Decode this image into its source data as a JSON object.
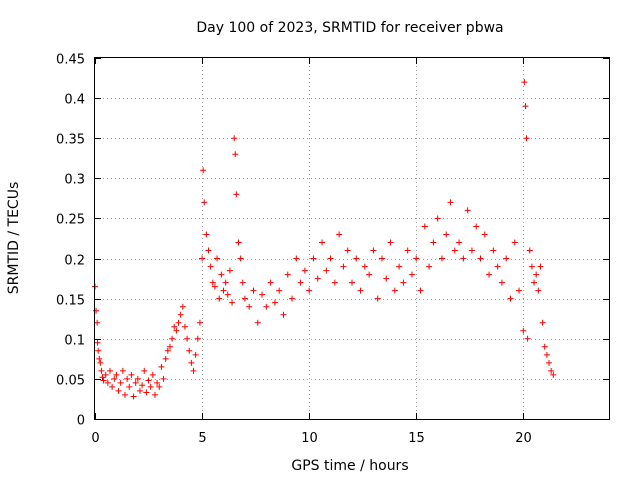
{
  "chart_data": {
    "type": "scatter",
    "title": "Day 100 of 2023, SRMTID for receiver pbwa",
    "xlabel": "GPS time / hours",
    "ylabel": "SRMTID / TECUs",
    "xlim": [
      0,
      24
    ],
    "ylim": [
      0,
      0.45
    ],
    "xticks": [
      0,
      5,
      10,
      15,
      20
    ],
    "xtick_labels": [
      "0",
      "5",
      "10",
      "15",
      "20"
    ],
    "yticks": [
      0,
      0.05,
      0.1,
      0.15,
      0.2,
      0.25,
      0.3,
      0.35,
      0.4,
      0.45
    ],
    "ytick_labels": [
      "0",
      "0.05",
      "0.1",
      "0.15",
      "0.2",
      "0.25",
      "0.3",
      "0.35",
      "0.4",
      "0.45"
    ],
    "grid": true,
    "marker": "plus",
    "series": [
      {
        "name": "SRMTID",
        "color": "#ff0000",
        "points": [
          [
            0.0,
            0.165
          ],
          [
            0.05,
            0.135
          ],
          [
            0.1,
            0.12
          ],
          [
            0.12,
            0.095
          ],
          [
            0.15,
            0.085
          ],
          [
            0.2,
            0.075
          ],
          [
            0.25,
            0.07
          ],
          [
            0.3,
            0.06
          ],
          [
            0.35,
            0.052
          ],
          [
            0.4,
            0.048
          ],
          [
            0.5,
            0.055
          ],
          [
            0.6,
            0.045
          ],
          [
            0.7,
            0.06
          ],
          [
            0.8,
            0.04
          ],
          [
            0.9,
            0.05
          ],
          [
            1.0,
            0.055
          ],
          [
            1.1,
            0.035
          ],
          [
            1.2,
            0.045
          ],
          [
            1.3,
            0.06
          ],
          [
            1.4,
            0.03
          ],
          [
            1.5,
            0.05
          ],
          [
            1.6,
            0.04
          ],
          [
            1.7,
            0.055
          ],
          [
            1.8,
            0.028
          ],
          [
            1.9,
            0.045
          ],
          [
            2.0,
            0.05
          ],
          [
            2.1,
            0.035
          ],
          [
            2.2,
            0.042
          ],
          [
            2.3,
            0.06
          ],
          [
            2.4,
            0.033
          ],
          [
            2.5,
            0.048
          ],
          [
            2.6,
            0.04
          ],
          [
            2.7,
            0.055
          ],
          [
            2.8,
            0.03
          ],
          [
            2.9,
            0.045
          ],
          [
            3.0,
            0.04
          ],
          [
            3.1,
            0.065
          ],
          [
            3.2,
            0.05
          ],
          [
            3.3,
            0.075
          ],
          [
            3.4,
            0.085
          ],
          [
            3.5,
            0.09
          ],
          [
            3.6,
            0.1
          ],
          [
            3.7,
            0.115
          ],
          [
            3.8,
            0.11
          ],
          [
            3.9,
            0.12
          ],
          [
            4.0,
            0.13
          ],
          [
            4.1,
            0.14
          ],
          [
            4.2,
            0.115
          ],
          [
            4.3,
            0.1
          ],
          [
            4.4,
            0.085
          ],
          [
            4.5,
            0.07
          ],
          [
            4.6,
            0.06
          ],
          [
            4.7,
            0.08
          ],
          [
            4.8,
            0.1
          ],
          [
            4.9,
            0.12
          ],
          [
            5.0,
            0.2
          ],
          [
            5.05,
            0.31
          ],
          [
            5.1,
            0.27
          ],
          [
            5.2,
            0.23
          ],
          [
            5.3,
            0.21
          ],
          [
            5.4,
            0.19
          ],
          [
            5.5,
            0.17
          ],
          [
            5.6,
            0.165
          ],
          [
            5.7,
            0.2
          ],
          [
            5.8,
            0.15
          ],
          [
            5.9,
            0.18
          ],
          [
            6.0,
            0.16
          ],
          [
            6.1,
            0.17
          ],
          [
            6.2,
            0.155
          ],
          [
            6.3,
            0.185
          ],
          [
            6.4,
            0.145
          ],
          [
            6.5,
            0.35
          ],
          [
            6.55,
            0.33
          ],
          [
            6.6,
            0.28
          ],
          [
            6.7,
            0.22
          ],
          [
            6.8,
            0.2
          ],
          [
            6.9,
            0.17
          ],
          [
            7.0,
            0.15
          ],
          [
            7.2,
            0.14
          ],
          [
            7.4,
            0.16
          ],
          [
            7.6,
            0.12
          ],
          [
            7.8,
            0.155
          ],
          [
            8.0,
            0.14
          ],
          [
            8.2,
            0.17
          ],
          [
            8.4,
            0.145
          ],
          [
            8.6,
            0.16
          ],
          [
            8.8,
            0.13
          ],
          [
            9.0,
            0.18
          ],
          [
            9.2,
            0.15
          ],
          [
            9.4,
            0.2
          ],
          [
            9.6,
            0.17
          ],
          [
            9.8,
            0.185
          ],
          [
            10.0,
            0.16
          ],
          [
            10.2,
            0.2
          ],
          [
            10.4,
            0.175
          ],
          [
            10.6,
            0.22
          ],
          [
            10.8,
            0.185
          ],
          [
            11.0,
            0.2
          ],
          [
            11.2,
            0.17
          ],
          [
            11.4,
            0.23
          ],
          [
            11.6,
            0.19
          ],
          [
            11.8,
            0.21
          ],
          [
            12.0,
            0.17
          ],
          [
            12.2,
            0.2
          ],
          [
            12.4,
            0.16
          ],
          [
            12.6,
            0.19
          ],
          [
            12.8,
            0.18
          ],
          [
            13.0,
            0.21
          ],
          [
            13.2,
            0.15
          ],
          [
            13.4,
            0.2
          ],
          [
            13.6,
            0.175
          ],
          [
            13.8,
            0.22
          ],
          [
            14.0,
            0.16
          ],
          [
            14.2,
            0.19
          ],
          [
            14.4,
            0.17
          ],
          [
            14.6,
            0.21
          ],
          [
            14.8,
            0.18
          ],
          [
            15.0,
            0.2
          ],
          [
            15.2,
            0.16
          ],
          [
            15.4,
            0.24
          ],
          [
            15.6,
            0.19
          ],
          [
            15.8,
            0.22
          ],
          [
            16.0,
            0.25
          ],
          [
            16.2,
            0.2
          ],
          [
            16.4,
            0.23
          ],
          [
            16.6,
            0.27
          ],
          [
            16.8,
            0.21
          ],
          [
            17.0,
            0.22
          ],
          [
            17.2,
            0.2
          ],
          [
            17.4,
            0.26
          ],
          [
            17.6,
            0.21
          ],
          [
            17.8,
            0.24
          ],
          [
            18.0,
            0.2
          ],
          [
            18.2,
            0.23
          ],
          [
            18.4,
            0.18
          ],
          [
            18.6,
            0.21
          ],
          [
            18.8,
            0.19
          ],
          [
            19.0,
            0.17
          ],
          [
            19.2,
            0.2
          ],
          [
            19.4,
            0.15
          ],
          [
            19.6,
            0.22
          ],
          [
            19.8,
            0.16
          ],
          [
            20.0,
            0.11
          ],
          [
            20.05,
            0.42
          ],
          [
            20.1,
            0.39
          ],
          [
            20.15,
            0.35
          ],
          [
            20.2,
            0.1
          ],
          [
            20.3,
            0.21
          ],
          [
            20.4,
            0.19
          ],
          [
            20.5,
            0.17
          ],
          [
            20.6,
            0.18
          ],
          [
            20.7,
            0.16
          ],
          [
            20.8,
            0.19
          ],
          [
            20.9,
            0.12
          ],
          [
            21.0,
            0.09
          ],
          [
            21.1,
            0.08
          ],
          [
            21.2,
            0.07
          ],
          [
            21.3,
            0.06
          ],
          [
            21.4,
            0.055
          ]
        ]
      }
    ]
  }
}
